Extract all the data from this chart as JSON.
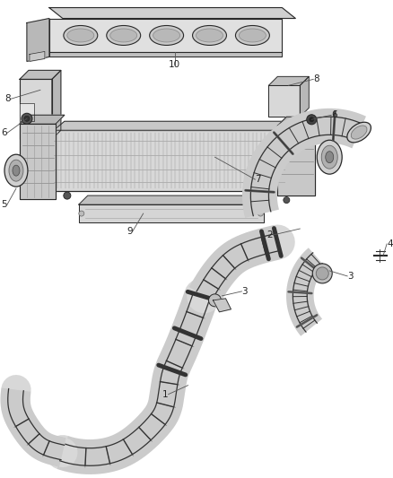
{
  "bg_color": "#ffffff",
  "fig_width": 4.38,
  "fig_height": 5.33,
  "dpi": 100,
  "lc": "#2a2a2a",
  "lc_light": "#888888",
  "fill_light": "#e8e8e8",
  "fill_mid": "#cccccc",
  "fill_dark": "#aaaaaa",
  "label_fs": 7.5,
  "leader_lw": 0.6,
  "leader_color": "#555555"
}
